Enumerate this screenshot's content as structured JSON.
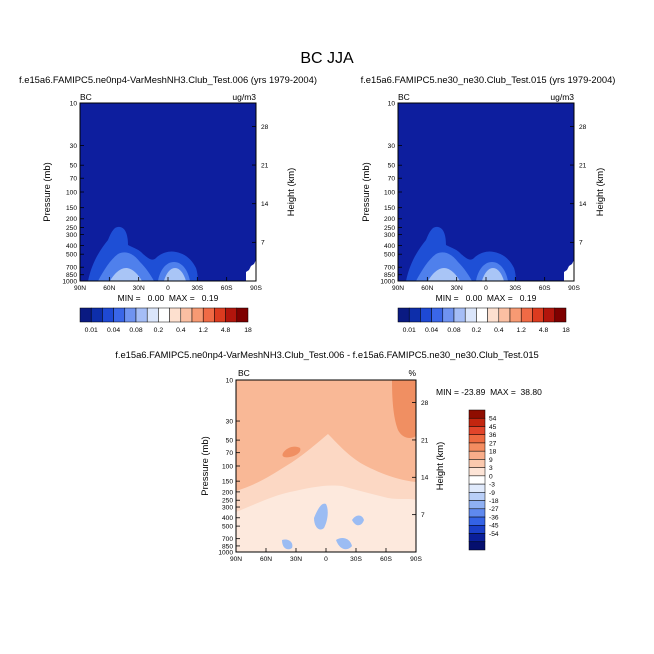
{
  "page": {
    "title": "BC JJA"
  },
  "colors": {
    "bc_levels": [
      "#0a1a82",
      "#0d2eaa",
      "#1e49d4",
      "#3a66e8",
      "#6f93f1",
      "#a5bdf6",
      "#dbe6fb",
      "#ffffff",
      "#fde0cf",
      "#fbbfa2",
      "#f79a73",
      "#f06a45",
      "#dc3b1f",
      "#b2150c",
      "#7e0000"
    ],
    "diff_levels": [
      "#050f6e",
      "#0a1f9a",
      "#1a3fc9",
      "#3463e6",
      "#5f89ef",
      "#8fb0f3",
      "#b9cff8",
      "#e0eafc",
      "#ffffff",
      "#fde4d6",
      "#fbc9ae",
      "#f8ad8a",
      "#f48c60",
      "#ee6a40",
      "#e2452a",
      "#c3260f",
      "#8f0d00"
    ],
    "field_base": "#0d1e9e",
    "field_plume_mid": "#1e4fd6",
    "field_plume_inner": "#4f80ec",
    "field_plume_core": "#a9c5f6",
    "diff_base": "#f9b896",
    "diff_light": "#fcd8c4",
    "diff_pale": "#fde9dd",
    "diff_dark": "#f08f62",
    "diff_blue": "#9bbcf3"
  },
  "chart_data": [
    {
      "type": "heatmap",
      "title": "f.e15a6.FAMIPC5.ne0np4-VarMeshNH3.Club_Test.006 (yrs 1979-2004)",
      "corner_left": "BC",
      "corner_right": "ug/m3",
      "ylabel": "Pressure (mb)",
      "ylabel_right": "Height (km)",
      "x_ticks": [
        "90N",
        "60N",
        "30N",
        "0",
        "30S",
        "60S",
        "90S"
      ],
      "y_ticks": [
        "10",
        "30",
        "50",
        "70",
        "100",
        "150",
        "200",
        "250",
        "300",
        "400",
        "500",
        "700",
        "850",
        "1000"
      ],
      "y_ticks_right": [
        "28",
        "21",
        "14",
        "7"
      ],
      "min_max_text": "MIN =   0.00  MAX =   0.19",
      "colorbar_labels": [
        "0.01",
        "0.04",
        "0.08",
        "0.2",
        "0.4",
        "1.2",
        "4.8",
        "18"
      ]
    },
    {
      "type": "heatmap",
      "title": "f.e15a6.FAMIPC5.ne30_ne30.Club_Test.015 (yrs 1979-2004)",
      "corner_left": "BC",
      "corner_right": "ug/m3",
      "ylabel": "Pressure (mb)",
      "ylabel_right": "Height (km)",
      "x_ticks": [
        "90N",
        "60N",
        "30N",
        "0",
        "30S",
        "60S",
        "90S"
      ],
      "y_ticks": [
        "10",
        "30",
        "50",
        "70",
        "100",
        "150",
        "200",
        "250",
        "300",
        "400",
        "500",
        "700",
        "850",
        "1000"
      ],
      "y_ticks_right": [
        "28",
        "21",
        "14",
        "7"
      ],
      "min_max_text": "MIN =   0.00  MAX =   0.19",
      "colorbar_labels": [
        "0.01",
        "0.04",
        "0.08",
        "0.2",
        "0.4",
        "1.2",
        "4.8",
        "18"
      ]
    },
    {
      "type": "heatmap",
      "title": "f.e15a6.FAMIPC5.ne0np4-VarMeshNH3.Club_Test.006 - f.e15a6.FAMIPC5.ne30_ne30.Club_Test.015",
      "corner_left": "BC",
      "corner_right": "%",
      "ylabel": "Pressure (mb)",
      "ylabel_right": "Height (km)",
      "x_ticks": [
        "90N",
        "60N",
        "30N",
        "0",
        "30S",
        "60S",
        "90S"
      ],
      "y_ticks": [
        "10",
        "30",
        "50",
        "70",
        "100",
        "150",
        "200",
        "250",
        "300",
        "400",
        "500",
        "700",
        "850",
        "1000"
      ],
      "y_ticks_right": [
        "28",
        "21",
        "14",
        "7"
      ],
      "min_max_text": "MIN = -23.89  MAX =  38.80",
      "colorbar_labels": [
        "54",
        "45",
        "36",
        "27",
        "18",
        "9",
        "3",
        "0",
        "-3",
        "-9",
        "-18",
        "-27",
        "-36",
        "-45",
        "-54"
      ]
    }
  ]
}
